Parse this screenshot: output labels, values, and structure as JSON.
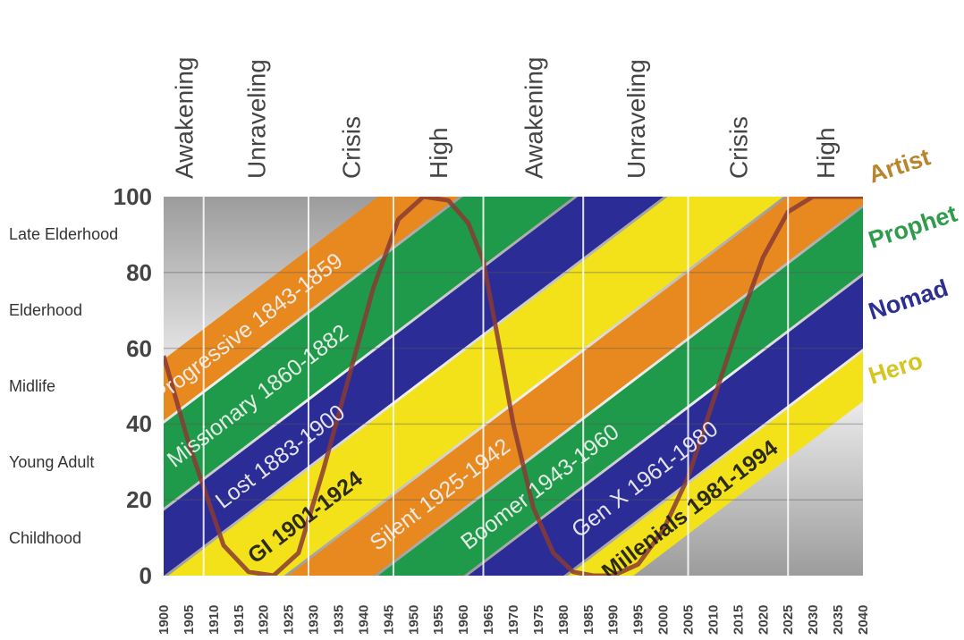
{
  "chart_data": {
    "type": "area",
    "title": "",
    "xlabel": "",
    "ylabel": "",
    "x_range": [
      1900,
      2040
    ],
    "ylim": [
      0,
      100
    ],
    "x_ticks": [
      "1900",
      "1905",
      "1910",
      "1915",
      "1920",
      "1925",
      "1930",
      "1935",
      "1940",
      "1945",
      "1950",
      "1955",
      "1960",
      "1965",
      "1970",
      "1975",
      "1980",
      "1985",
      "1990",
      "1995",
      "2000",
      "2005",
      "2010",
      "2015",
      "2020",
      "2025",
      "2030",
      "2035",
      "2040"
    ],
    "y_ticks": [
      "0",
      "20",
      "40",
      "60",
      "80",
      "100"
    ],
    "life_stages": [
      "Childhood",
      "Young Adult",
      "Midlife",
      "Elderhood",
      "Late Elderhood"
    ],
    "turnings": [
      {
        "label": "Awakening",
        "start": 1900,
        "end": 1908
      },
      {
        "label": "Unraveling",
        "start": 1908,
        "end": 1929
      },
      {
        "label": "Crisis",
        "start": 1929,
        "end": 1946
      },
      {
        "label": "High",
        "start": 1946,
        "end": 1964
      },
      {
        "label": "Awakening",
        "start": 1964,
        "end": 1984
      },
      {
        "label": "Unraveling",
        "start": 1984,
        "end": 2005
      },
      {
        "label": "Crisis",
        "start": 2005,
        "end": 2025
      },
      {
        "label": "High",
        "start": 2025,
        "end": 2040
      }
    ],
    "archetypes": [
      {
        "name": "Artist",
        "color": "#b8842c"
      },
      {
        "name": "Prophet",
        "color": "#2e9c4a"
      },
      {
        "name": "Nomad",
        "color": "#2d2f93"
      },
      {
        "name": "Hero",
        "color": "#d4c51f"
      }
    ],
    "generations": [
      {
        "name": "Progressive 1843-1859",
        "archetype": "Artist",
        "birth_start": 1843,
        "birth_end": 1859,
        "color": "#e8891f"
      },
      {
        "name": "Missionary 1860-1882",
        "archetype": "Prophet",
        "birth_start": 1860,
        "birth_end": 1882,
        "color": "#1f9a4a"
      },
      {
        "name": "Lost 1883-1900",
        "archetype": "Nomad",
        "birth_start": 1883,
        "birth_end": 1900,
        "color": "#2b2c96"
      },
      {
        "name": "GI 1901-1924",
        "archetype": "Hero",
        "birth_start": 1901,
        "birth_end": 1924,
        "color": "#f3e21a"
      },
      {
        "name": "Silent 1925-1942",
        "archetype": "Artist",
        "birth_start": 1925,
        "birth_end": 1942,
        "color": "#e8891f"
      },
      {
        "name": "Boomer 1943-1960",
        "archetype": "Prophet",
        "birth_start": 1943,
        "birth_end": 1960,
        "color": "#1f9a4a"
      },
      {
        "name": "Gen X 1961-1980",
        "archetype": "Nomad",
        "birth_start": 1961,
        "birth_end": 1980,
        "color": "#2b2c96"
      },
      {
        "name": "Millenials 1981-1994",
        "archetype": "Hero",
        "birth_start": 1981,
        "birth_end": 1994,
        "color": "#f3e21a"
      }
    ],
    "cycle_curve": [
      [
        1900,
        58
      ],
      [
        1905,
        35
      ],
      [
        1912,
        8
      ],
      [
        1917,
        1
      ],
      [
        1922,
        0
      ],
      [
        1927,
        6
      ],
      [
        1932,
        28
      ],
      [
        1937,
        52
      ],
      [
        1942,
        76
      ],
      [
        1947,
        94
      ],
      [
        1952,
        100
      ],
      [
        1957,
        99
      ],
      [
        1961,
        93
      ],
      [
        1964,
        83
      ],
      [
        1967,
        62
      ],
      [
        1970,
        40
      ],
      [
        1974,
        18
      ],
      [
        1978,
        6
      ],
      [
        1982,
        1
      ],
      [
        1986,
        0
      ],
      [
        1990,
        0
      ],
      [
        1995,
        3
      ],
      [
        2000,
        12
      ],
      [
        2005,
        26
      ],
      [
        2010,
        46
      ],
      [
        2015,
        66
      ],
      [
        2020,
        84
      ],
      [
        2025,
        96
      ],
      [
        2030,
        100
      ],
      [
        2040,
        100
      ]
    ],
    "grid": true
  }
}
